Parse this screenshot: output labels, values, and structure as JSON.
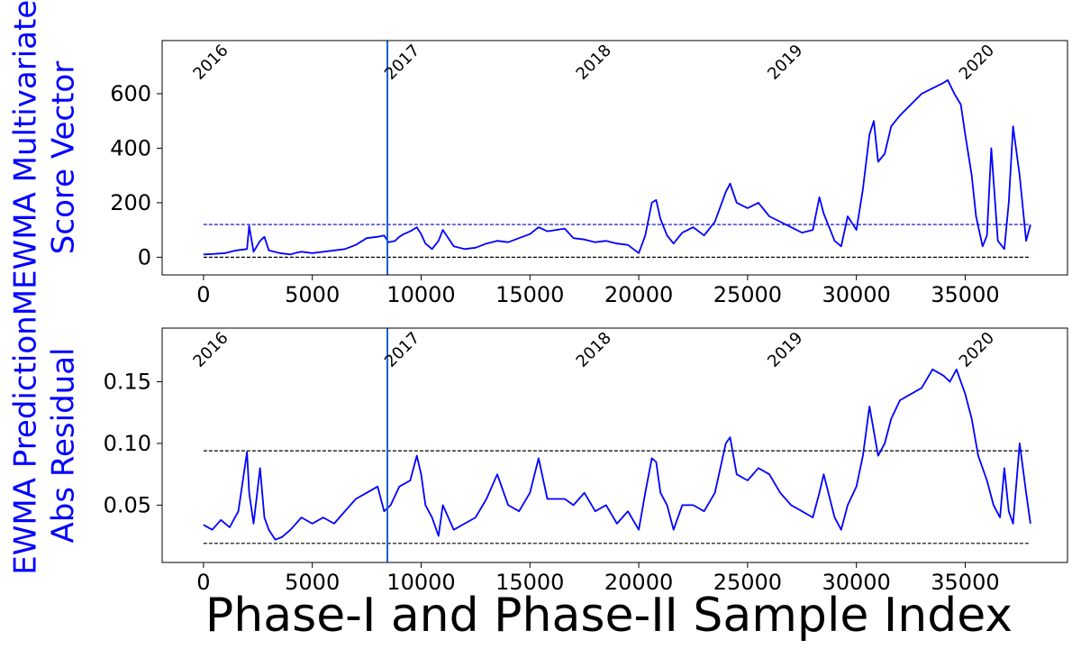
{
  "chart_data": [
    {
      "type": "line",
      "ylabel_lines": [
        "MEWMA Multivariate",
        "Score Vector"
      ],
      "xlabel": "",
      "xlim": [
        -1900,
        39700
      ],
      "ylim": [
        -65,
        795
      ],
      "xticks": [
        0,
        5000,
        10000,
        15000,
        20000,
        25000,
        30000,
        35000
      ],
      "yticks": [
        0,
        200,
        400,
        600
      ],
      "phase_split_x": 8450,
      "year_markers": [
        {
          "label": "2016",
          "x": 0
        },
        {
          "label": "2017",
          "x": 8800
        },
        {
          "label": "2018",
          "x": 17600
        },
        {
          "label": "2019",
          "x": 26400
        },
        {
          "label": "2020",
          "x": 35200
        }
      ],
      "hlines": [
        {
          "name": "upper control limit",
          "y": 120,
          "color": "#0000cc"
        },
        {
          "name": "lower control limit",
          "y": 0,
          "color": "#000000"
        }
      ],
      "series": [
        {
          "color": "#0000ff",
          "x": [
            0,
            500,
            1000,
            1500,
            2000,
            2100,
            2300,
            2600,
            2800,
            3000,
            3500,
            4000,
            4200,
            4500,
            5000,
            5500,
            6000,
            6500,
            7000,
            7500,
            8000,
            8300,
            8500,
            8800,
            9000,
            9200,
            9500,
            9800,
            10000,
            10200,
            10500,
            10800,
            11000,
            11500,
            12000,
            12500,
            13000,
            13500,
            14000,
            14500,
            15000,
            15400,
            15800,
            16200,
            16600,
            17000,
            17500,
            18000,
            18500,
            19000,
            19500,
            20000,
            20300,
            20600,
            20800,
            21000,
            21300,
            21600,
            22000,
            22500,
            23000,
            23500,
            24000,
            24200,
            24500,
            25000,
            25500,
            26000,
            26500,
            27000,
            27500,
            28000,
            28300,
            28500,
            29000,
            29300,
            29600,
            30000,
            30300,
            30600,
            30800,
            31000,
            31300,
            31600,
            32000,
            32500,
            33000,
            33500,
            34000,
            34200,
            34500,
            34800,
            35000,
            35300,
            35500,
            35800,
            36000,
            36200,
            36500,
            36800,
            37000,
            37200,
            37500,
            37800,
            38000
          ],
          "values": [
            10,
            12,
            15,
            25,
            30,
            115,
            20,
            60,
            75,
            25,
            15,
            10,
            15,
            20,
            15,
            20,
            25,
            30,
            45,
            70,
            75,
            80,
            55,
            60,
            75,
            85,
            95,
            110,
            85,
            50,
            30,
            60,
            100,
            40,
            30,
            35,
            50,
            60,
            55,
            70,
            85,
            110,
            95,
            100,
            105,
            70,
            65,
            55,
            60,
            50,
            45,
            15,
            80,
            200,
            210,
            140,
            80,
            50,
            90,
            110,
            80,
            130,
            240,
            270,
            200,
            180,
            200,
            150,
            130,
            110,
            90,
            100,
            220,
            160,
            60,
            40,
            150,
            100,
            250,
            450,
            500,
            350,
            380,
            480,
            520,
            560,
            600,
            620,
            640,
            650,
            600,
            560,
            450,
            300,
            150,
            40,
            80,
            400,
            60,
            30,
            200,
            480,
            300,
            60,
            120
          ]
        }
      ]
    },
    {
      "type": "line",
      "ylabel_lines": [
        "EWMA Prediction",
        "Abs Residual"
      ],
      "xlabel": "Phase-I and Phase-II Sample Index",
      "xlim": [
        -1900,
        39700
      ],
      "ylim": [
        0.0035,
        0.1935
      ],
      "xticks": [
        0,
        5000,
        10000,
        15000,
        20000,
        25000,
        30000,
        35000
      ],
      "yticks": [
        0.05,
        0.1,
        0.15
      ],
      "ytick_labels": [
        "0.05",
        "0.10",
        "0.15"
      ],
      "phase_split_x": 8450,
      "year_markers": [
        {
          "label": "2016",
          "x": 0
        },
        {
          "label": "2017",
          "x": 8800
        },
        {
          "label": "2018",
          "x": 17600
        },
        {
          "label": "2019",
          "x": 26400
        },
        {
          "label": "2020",
          "x": 35200
        }
      ],
      "hlines": [
        {
          "name": "upper control limit",
          "y": 0.094,
          "color": "#000000"
        },
        {
          "name": "lower control limit",
          "y": 0.019,
          "color": "#000000"
        }
      ],
      "series": [
        {
          "color": "#0000ff",
          "x": [
            0,
            400,
            800,
            1200,
            1600,
            2000,
            2100,
            2300,
            2600,
            2800,
            3000,
            3300,
            3600,
            4000,
            4500,
            5000,
            5500,
            6000,
            6500,
            7000,
            7500,
            8000,
            8300,
            8600,
            9000,
            9500,
            9800,
            10000,
            10200,
            10500,
            10800,
            11000,
            11500,
            12000,
            12500,
            13000,
            13500,
            14000,
            14500,
            15000,
            15400,
            15800,
            16200,
            16600,
            17000,
            17500,
            18000,
            18500,
            19000,
            19500,
            20000,
            20300,
            20600,
            20800,
            21000,
            21300,
            21600,
            22000,
            22500,
            23000,
            23500,
            24000,
            24200,
            24500,
            25000,
            25500,
            26000,
            26500,
            27000,
            27500,
            28000,
            28300,
            28500,
            29000,
            29300,
            29600,
            30000,
            30300,
            30600,
            30800,
            31000,
            31300,
            31600,
            32000,
            32500,
            33000,
            33500,
            34000,
            34300,
            34600,
            35000,
            35300,
            35600,
            36000,
            36300,
            36600,
            36800,
            37000,
            37200,
            37500,
            37800,
            38000
          ],
          "values": [
            0.034,
            0.03,
            0.038,
            0.032,
            0.045,
            0.093,
            0.06,
            0.035,
            0.08,
            0.04,
            0.03,
            0.022,
            0.024,
            0.03,
            0.04,
            0.035,
            0.04,
            0.035,
            0.045,
            0.055,
            0.06,
            0.065,
            0.045,
            0.05,
            0.065,
            0.07,
            0.09,
            0.075,
            0.05,
            0.04,
            0.025,
            0.05,
            0.03,
            0.035,
            0.04,
            0.055,
            0.075,
            0.05,
            0.045,
            0.06,
            0.088,
            0.055,
            0.055,
            0.055,
            0.05,
            0.06,
            0.045,
            0.05,
            0.035,
            0.045,
            0.03,
            0.06,
            0.088,
            0.085,
            0.06,
            0.05,
            0.03,
            0.05,
            0.05,
            0.045,
            0.06,
            0.1,
            0.105,
            0.075,
            0.07,
            0.08,
            0.075,
            0.06,
            0.05,
            0.045,
            0.04,
            0.06,
            0.075,
            0.04,
            0.03,
            0.05,
            0.065,
            0.09,
            0.13,
            0.11,
            0.09,
            0.1,
            0.12,
            0.135,
            0.14,
            0.145,
            0.16,
            0.155,
            0.15,
            0.16,
            0.14,
            0.12,
            0.09,
            0.07,
            0.05,
            0.04,
            0.08,
            0.045,
            0.035,
            0.1,
            0.06,
            0.035
          ]
        }
      ]
    }
  ]
}
